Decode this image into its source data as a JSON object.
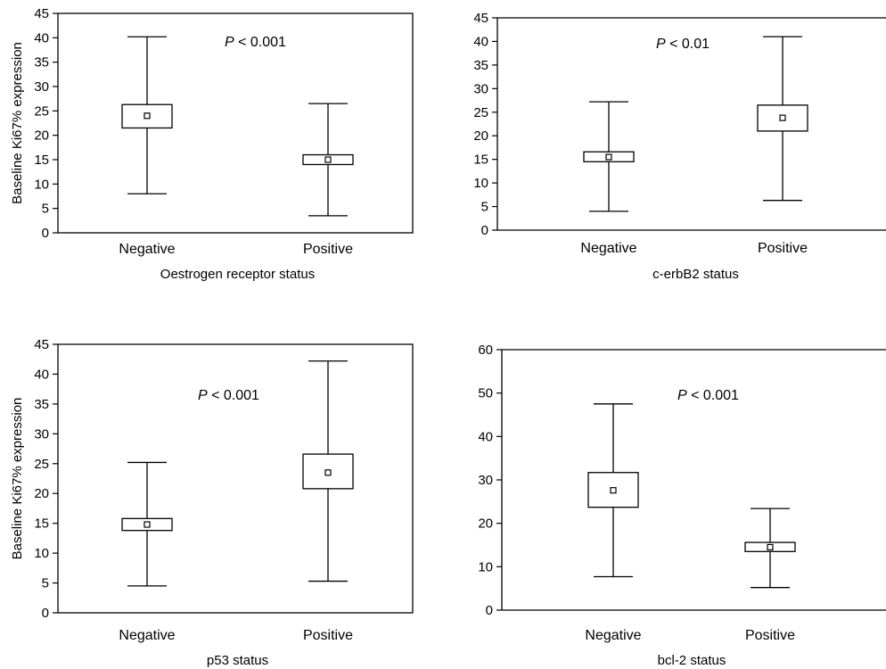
{
  "chart_data": [
    {
      "type": "box",
      "xlabel": "Oestrogen receptor status",
      "ylabel": "Baseline Ki67% expression",
      "ylim": [
        0,
        45
      ],
      "yticks": [
        0,
        5,
        10,
        15,
        20,
        25,
        30,
        35,
        40,
        45
      ],
      "annotation": {
        "p": "P",
        "rest": " < 0.001"
      },
      "frame": "full",
      "categories": [
        "Negative",
        "Positive"
      ],
      "boxes": [
        {
          "category": "Negative",
          "min": 8,
          "q1": 21.5,
          "mean": 24,
          "q3": 26.3,
          "max": 40.2
        },
        {
          "category": "Positive",
          "min": 3.5,
          "q1": 14,
          "mean": 15,
          "q3": 16,
          "max": 26.5
        }
      ]
    },
    {
      "type": "box",
      "xlabel": "c-erbB2 status",
      "ylabel": "",
      "ylim": [
        0,
        45
      ],
      "yticks": [
        0,
        5,
        10,
        15,
        20,
        25,
        30,
        35,
        40,
        45
      ],
      "annotation": {
        "p": "P",
        "rest": " < 0.01"
      },
      "frame": "open",
      "categories": [
        "Negative",
        "Positive"
      ],
      "boxes": [
        {
          "category": "Negative",
          "min": 4,
          "q1": 14.5,
          "mean": 15.5,
          "q3": 16.6,
          "max": 27.2
        },
        {
          "category": "Positive",
          "min": 6.3,
          "q1": 21,
          "mean": 23.8,
          "q3": 26.5,
          "max": 41
        }
      ]
    },
    {
      "type": "box",
      "xlabel": "p53 status",
      "ylabel": "Baseline Ki67% expression",
      "ylim": [
        0,
        45
      ],
      "yticks": [
        0,
        5,
        10,
        15,
        20,
        25,
        30,
        35,
        40,
        45
      ],
      "annotation": {
        "p": "P",
        "rest": " < 0.001"
      },
      "frame": "full",
      "categories": [
        "Negative",
        "Positive"
      ],
      "boxes": [
        {
          "category": "Negative",
          "min": 4.5,
          "q1": 13.8,
          "mean": 14.8,
          "q3": 15.8,
          "max": 25.2
        },
        {
          "category": "Positive",
          "min": 5.3,
          "q1": 20.8,
          "mean": 23.5,
          "q3": 26.6,
          "max": 42.2
        }
      ]
    },
    {
      "type": "box",
      "xlabel": "bcl-2 status",
      "ylabel": "",
      "ylim": [
        0,
        60
      ],
      "yticks": [
        0,
        10,
        20,
        30,
        40,
        50,
        60
      ],
      "annotation": {
        "p": "P",
        "rest": " < 0.001"
      },
      "frame": "open",
      "categories": [
        "Negative",
        "Positive"
      ],
      "boxes": [
        {
          "category": "Negative",
          "min": 7.7,
          "q1": 23.7,
          "mean": 27.6,
          "q3": 31.7,
          "max": 47.5
        },
        {
          "category": "Positive",
          "min": 5.2,
          "q1": 13.5,
          "mean": 14.5,
          "q3": 15.6,
          "max": 23.4
        }
      ]
    }
  ]
}
